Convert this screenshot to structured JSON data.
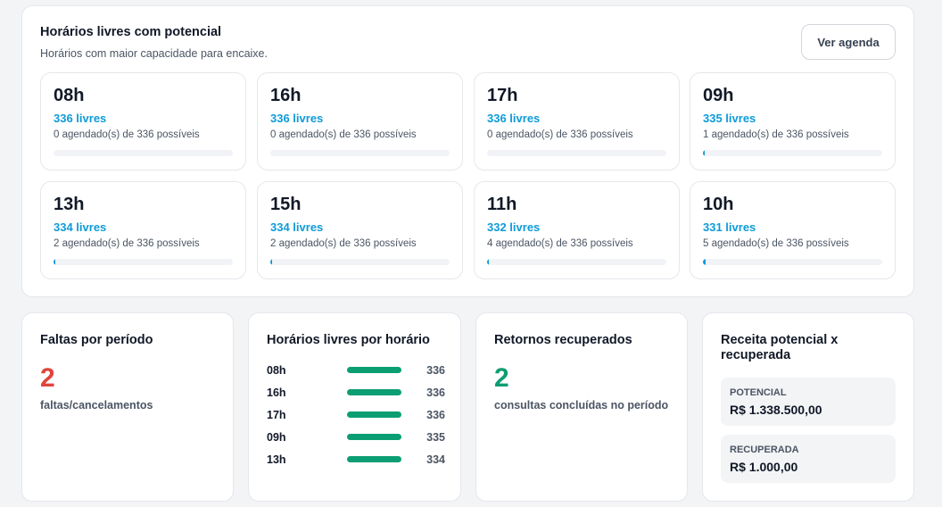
{
  "top": {
    "title": "Horários livres com potencial",
    "subtitle": "Horários com maior capacidade para encaixe.",
    "button": "Ver agenda",
    "slots": [
      {
        "hour": "08h",
        "free": "336 livres",
        "desc": "0 agendado(s) de 336 possíveis",
        "booked_pct": 0
      },
      {
        "hour": "16h",
        "free": "336 livres",
        "desc": "0 agendado(s) de 336 possíveis",
        "booked_pct": 0
      },
      {
        "hour": "17h",
        "free": "336 livres",
        "desc": "0 agendado(s) de 336 possíveis",
        "booked_pct": 0
      },
      {
        "hour": "09h",
        "free": "335 livres",
        "desc": "1 agendado(s) de 336 possíveis",
        "booked_pct": 0.3
      },
      {
        "hour": "13h",
        "free": "334 livres",
        "desc": "2 agendado(s) de 336 possíveis",
        "booked_pct": 0.6
      },
      {
        "hour": "15h",
        "free": "334 livres",
        "desc": "2 agendado(s) de 336 possíveis",
        "booked_pct": 0.6
      },
      {
        "hour": "11h",
        "free": "332 livres",
        "desc": "4 agendado(s) de 336 possíveis",
        "booked_pct": 1.2
      },
      {
        "hour": "10h",
        "free": "331 livres",
        "desc": "5 agendado(s) de 336 possíveis",
        "booked_pct": 1.5
      }
    ]
  },
  "faltas": {
    "title": "Faltas por período",
    "value": "2",
    "label": "faltas/cancelamentos",
    "value_color": "#e0453b"
  },
  "hours_chart": {
    "title": "Horários livres por horário",
    "rows": [
      {
        "hour": "08h",
        "value": "336"
      },
      {
        "hour": "16h",
        "value": "336"
      },
      {
        "hour": "17h",
        "value": "336"
      },
      {
        "hour": "09h",
        "value": "335"
      },
      {
        "hour": "13h",
        "value": "334"
      }
    ],
    "bar_color": "#0c9e73"
  },
  "retornos": {
    "title": "Retornos recuperados",
    "value": "2",
    "label": "consultas concluídas no período",
    "value_color": "#0c9e73"
  },
  "receita": {
    "title": "Receita potencial x recuperada",
    "potencial_label": "POTENCIAL",
    "potencial_value": "R$ 1.338.500,00",
    "recuperada_label": "RECUPERADA",
    "recuperada_value": "R$ 1.000,00"
  },
  "colors": {
    "accent_blue": "#0e9bd8",
    "accent_green": "#0c9e73",
    "accent_red": "#e0453b"
  }
}
